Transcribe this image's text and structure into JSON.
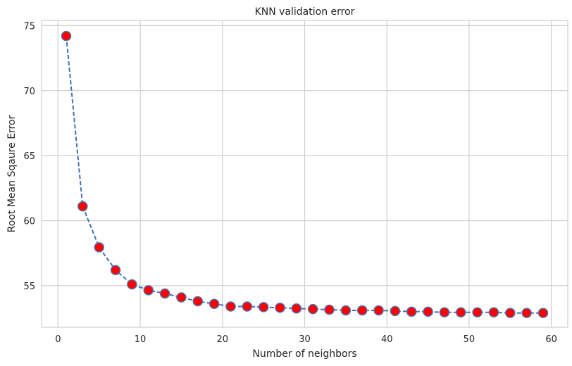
{
  "chart_data": {
    "type": "line",
    "title": "KNN validation error",
    "xlabel": "Number of neighbors",
    "ylabel": "Root Mean Sqaure Error",
    "xlim": [
      -2.0,
      62.0
    ],
    "ylim": [
      51.8,
      75.4
    ],
    "xticks": [
      0,
      10,
      20,
      30,
      40,
      50,
      60
    ],
    "yticks": [
      55,
      60,
      65,
      70,
      75
    ],
    "grid": true,
    "line_style": "dashed",
    "colors": {
      "line": "#4272b4",
      "marker_fill": "#ff0000",
      "marker_edge": "#4c72b0",
      "grid": "#cfcfcf"
    },
    "series": [
      {
        "x": [
          1,
          3,
          5,
          7,
          9,
          11,
          13,
          15,
          17,
          19,
          21,
          23,
          25,
          27,
          29,
          31,
          33,
          35,
          37,
          39,
          41,
          43,
          45,
          47,
          49,
          51,
          53,
          55,
          57,
          59
        ],
        "y": [
          74.2,
          61.1,
          57.95,
          56.2,
          55.1,
          54.65,
          54.4,
          54.1,
          53.8,
          53.6,
          53.4,
          53.4,
          53.35,
          53.3,
          53.25,
          53.2,
          53.15,
          53.1,
          53.1,
          53.1,
          53.05,
          53.0,
          53.0,
          52.95,
          52.95,
          52.95,
          52.95,
          52.9,
          52.9,
          52.9
        ]
      }
    ]
  }
}
